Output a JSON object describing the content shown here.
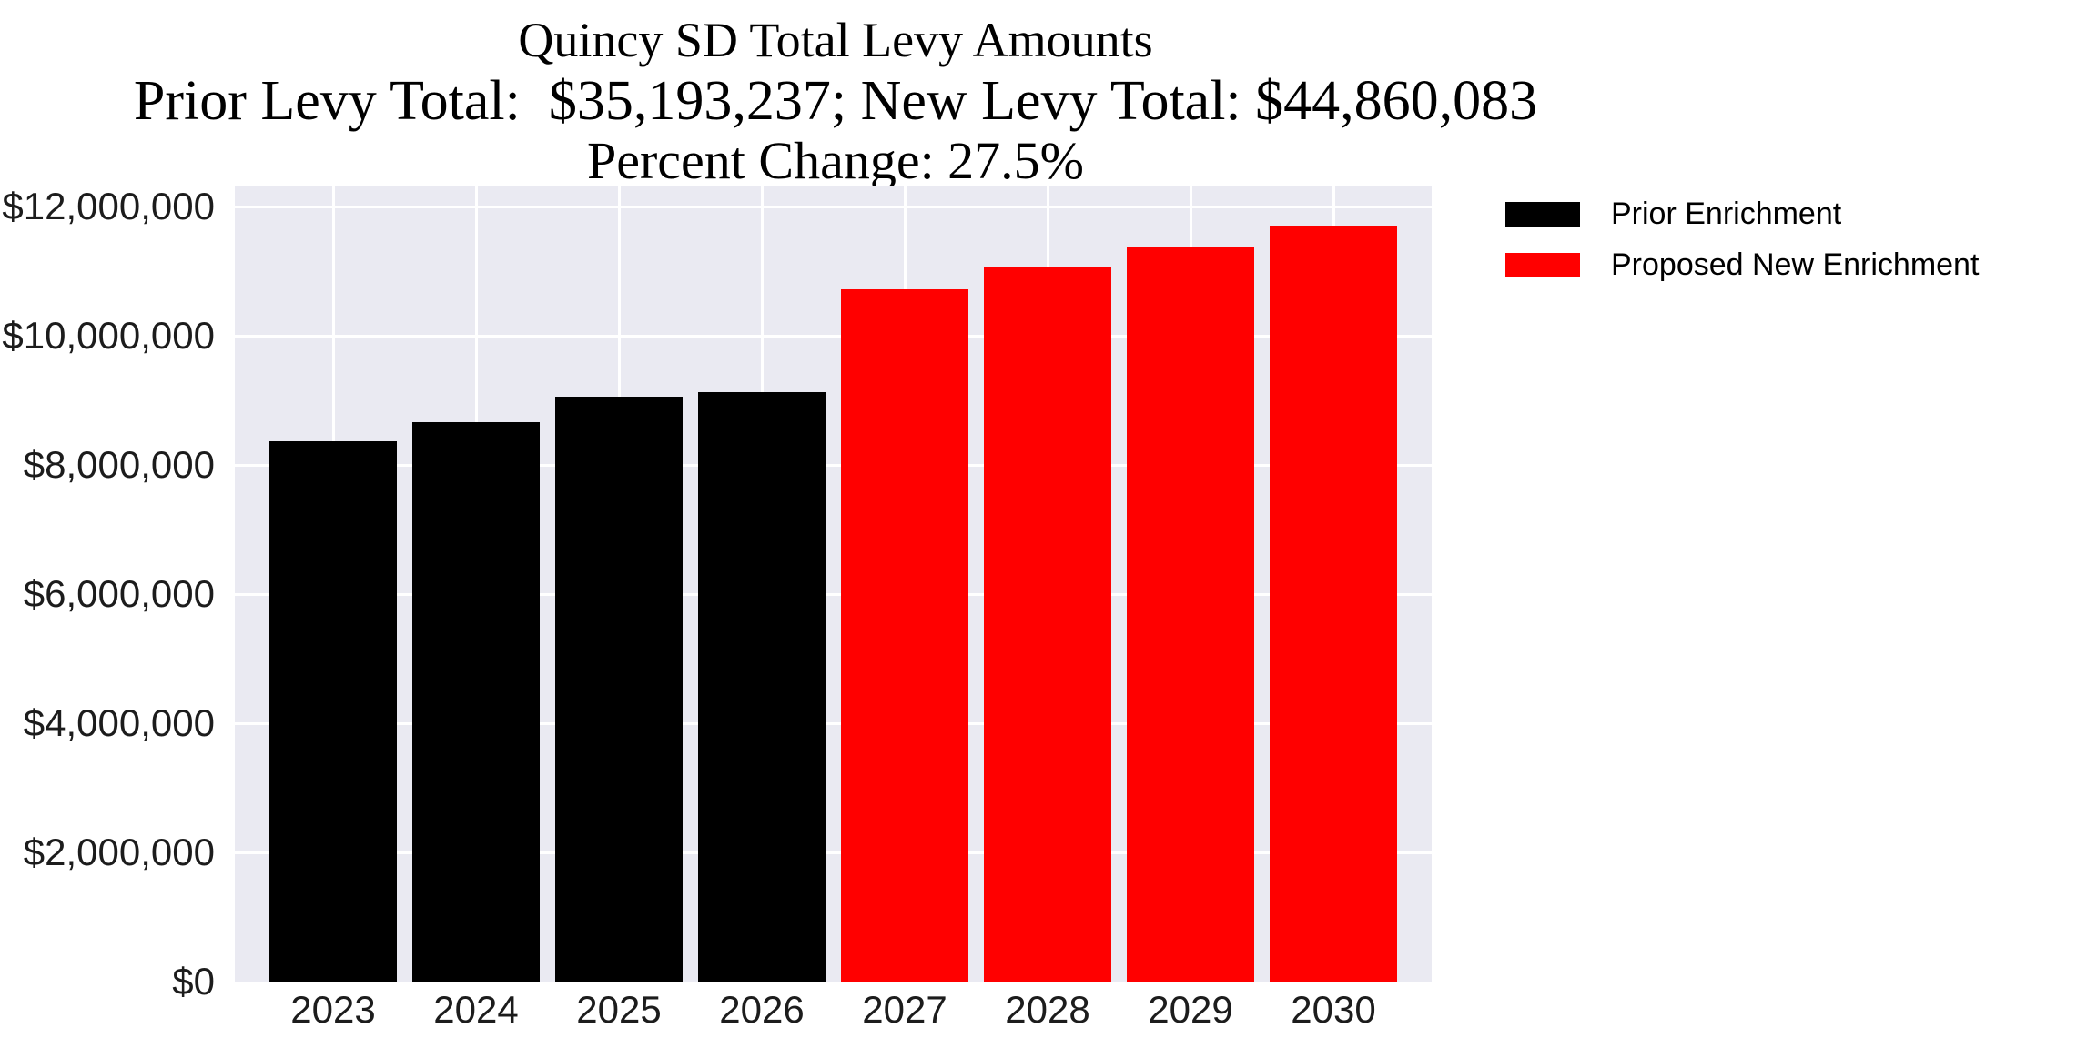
{
  "chart_data": {
    "type": "bar",
    "title_lines": [
      "Quincy SD Total Levy Amounts",
      "Prior Levy Total:  $35,193,237; New Levy Total: $44,860,083",
      "Percent Change: 27.5%"
    ],
    "totals": {
      "prior_levy_total": "$35,193,237",
      "new_levy_total": "$44,860,083",
      "percent_change": "27.5%"
    },
    "categories": [
      "2023",
      "2024",
      "2025",
      "2026",
      "2027",
      "2028",
      "2029",
      "2030"
    ],
    "series": [
      {
        "name": "Prior Enrichment",
        "color": "#000000",
        "values": [
          8360000,
          8660000,
          9050000,
          9120000,
          null,
          null,
          null,
          null
        ]
      },
      {
        "name": "Proposed New Enrichment",
        "color": "#ff0000",
        "values": [
          null,
          null,
          null,
          null,
          10720000,
          11060000,
          11370000,
          11710000
        ]
      }
    ],
    "y_ticks": [
      {
        "value": 0,
        "label": "$0"
      },
      {
        "value": 2000000,
        "label": "$2,000,000"
      },
      {
        "value": 4000000,
        "label": "$4,000,000"
      },
      {
        "value": 6000000,
        "label": "$6,000,000"
      },
      {
        "value": 8000000,
        "label": "$8,000,000"
      },
      {
        "value": 10000000,
        "label": "$10,000,000"
      },
      {
        "value": 12000000,
        "label": "$12,000,000"
      }
    ],
    "ylim": [
      0,
      12324000
    ],
    "grid": "both",
    "plot_background": "#eaeaf2",
    "grid_color": "#ffffff",
    "legend_position": "upper-right-outside"
  }
}
